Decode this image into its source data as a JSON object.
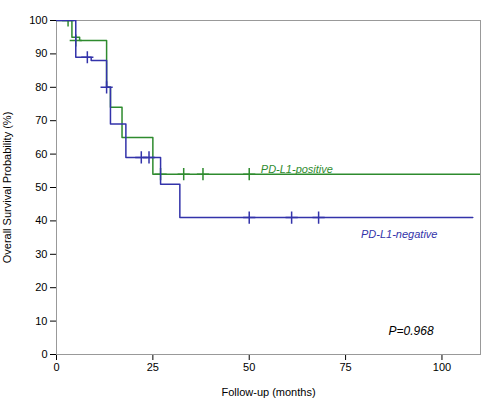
{
  "chart_data": {
    "type": "line",
    "line_style": "step",
    "xlabel": "Follow-up (months)",
    "ylabel": "Overall Survival Probability (%)",
    "xlim": [
      0,
      110
    ],
    "ylim": [
      0,
      100
    ],
    "xticks": [
      0,
      25,
      50,
      75,
      100
    ],
    "yticks": [
      0,
      10,
      20,
      30,
      40,
      50,
      60,
      70,
      80,
      90,
      100
    ],
    "series": [
      {
        "name": "PD-L1-positive",
        "color": "#2E8B2E",
        "x": [
          0,
          2,
          4,
          5,
          6,
          13,
          14,
          17,
          20,
          22,
          25,
          27,
          33,
          38,
          45,
          50,
          110
        ],
        "values": [
          100,
          100,
          95,
          95,
          94,
          80,
          74,
          65,
          65,
          65,
          54,
          54,
          54,
          54,
          54,
          54,
          54
        ],
        "censored_x": [
          3,
          5,
          27,
          33,
          38,
          50
        ],
        "censored_y": [
          100,
          94,
          54,
          54,
          54,
          54
        ],
        "label_x": 53,
        "label_y": 55.5
      },
      {
        "name": "PD-L1-negative",
        "color": "#3333AA",
        "x": [
          0,
          3,
          5,
          6,
          7,
          9,
          13,
          14,
          15,
          18,
          21,
          22,
          27,
          32,
          45,
          50,
          60,
          65,
          69,
          108
        ],
        "values": [
          100,
          100,
          89,
          89,
          89,
          88,
          80,
          69,
          69,
          59,
          59,
          59,
          51,
          41,
          41,
          41,
          41,
          41,
          41,
          41
        ],
        "censored_x": [
          8,
          13,
          22,
          24,
          50,
          61,
          68
        ],
        "censored_y": [
          89,
          80,
          59,
          59,
          41,
          41,
          41
        ],
        "label_x": 79,
        "label_y": 36
      }
    ],
    "annotations": [
      {
        "text": "P=0.968",
        "x": 92,
        "y": 7
      }
    ]
  }
}
